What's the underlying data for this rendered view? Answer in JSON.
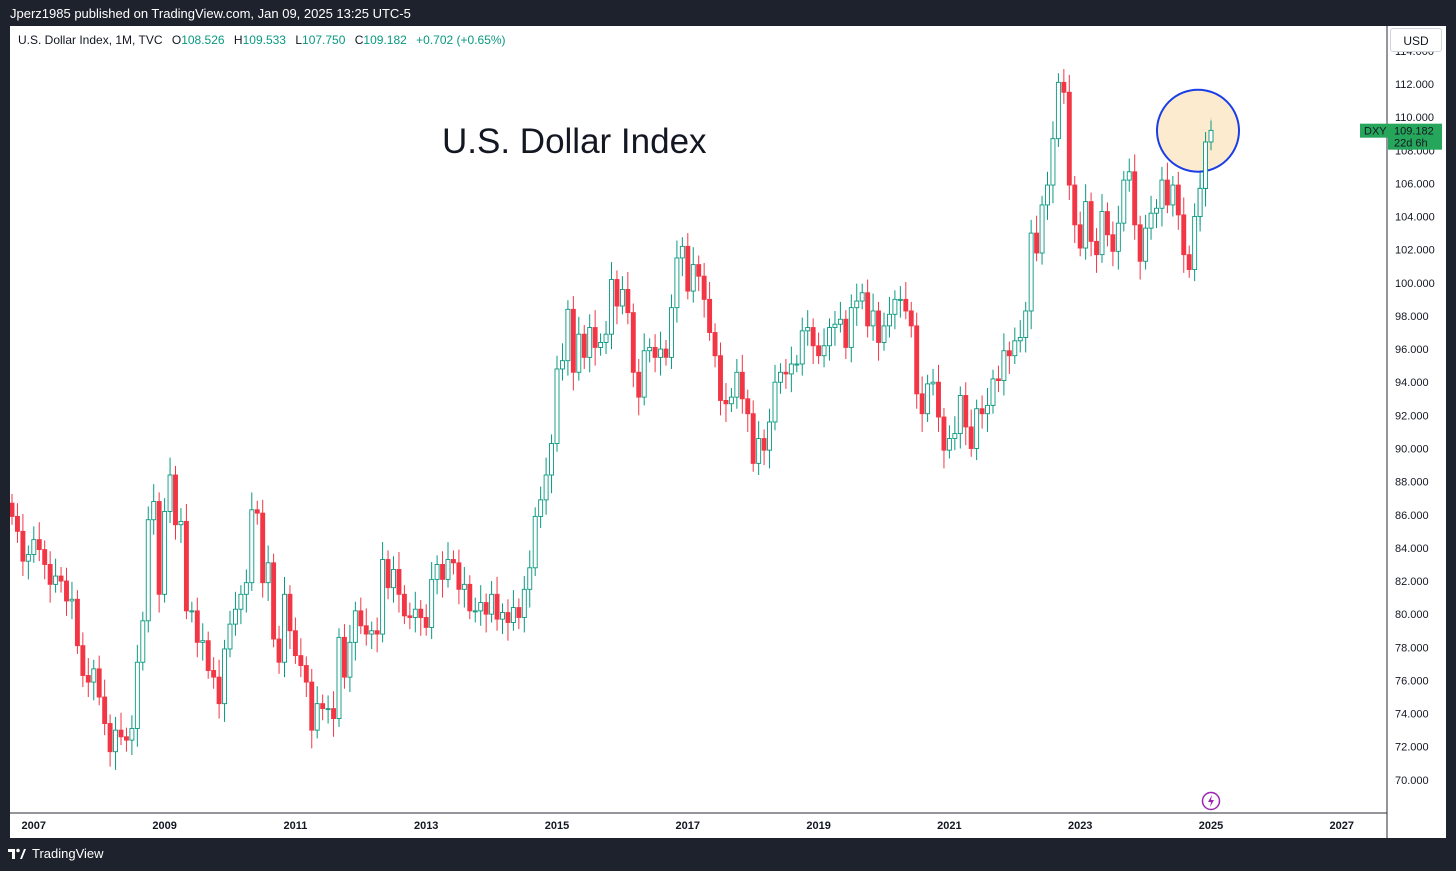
{
  "header": {
    "publish_line": "Jperz1985 published on TradingView.com, Jan 09, 2025 13:25 UTC-5"
  },
  "legend": {
    "symbol_line": "U.S. Dollar Index, 1M, TVC",
    "o_label": "O",
    "o_value": "108.526",
    "h_label": "H",
    "h_value": "109.533",
    "l_label": "L",
    "l_value": "107.750",
    "c_label": "C",
    "c_value": "109.182",
    "change": "+0.702 (+0.65%)"
  },
  "currency_button": "USD",
  "price_tag": {
    "symbol": "DXY",
    "price": "109.182",
    "countdown": "22d 6h"
  },
  "footer": {
    "brand": "TradingView"
  },
  "colors": {
    "up": "#089981",
    "down": "#f23645",
    "highlight_fill": "#fde7c8",
    "highlight_stroke": "#1a3ee6",
    "tag_bg": "#26a65b"
  },
  "chart_data": {
    "type": "candlestick",
    "title": "U.S. Dollar Index",
    "interval": "1M",
    "ylim": [
      68,
      115.5
    ],
    "y_ticks": [
      "70.000",
      "72.000",
      "74.000",
      "76.000",
      "78.000",
      "80.000",
      "82.000",
      "84.000",
      "86.000",
      "88.000",
      "90.000",
      "92.000",
      "94.000",
      "96.000",
      "98.000",
      "100.000",
      "102.000",
      "104.000",
      "106.000",
      "108.000",
      "110.000",
      "112.000",
      "114.000"
    ],
    "x_range": [
      "2006-09",
      "2027-12"
    ],
    "x_ticks": [
      "2007",
      "2009",
      "2011",
      "2013",
      "2015",
      "2017",
      "2019",
      "2021",
      "2023",
      "2025",
      "2027"
    ],
    "grid": false,
    "highlight": {
      "date": "2025-01",
      "center_price": 109,
      "note": "circled latest candles"
    },
    "close_series": [
      {
        "d": "2006-09",
        "c": 85.9
      },
      {
        "d": "2006-10",
        "c": 85.0
      },
      {
        "d": "2006-11",
        "c": 83.2
      },
      {
        "d": "2006-12",
        "c": 83.6
      },
      {
        "d": "2007-01",
        "c": 84.5
      },
      {
        "d": "2007-02",
        "c": 83.9
      },
      {
        "d": "2007-03",
        "c": 83.0
      },
      {
        "d": "2007-04",
        "c": 81.8
      },
      {
        "d": "2007-05",
        "c": 82.3
      },
      {
        "d": "2007-06",
        "c": 82.0
      },
      {
        "d": "2007-07",
        "c": 80.8
      },
      {
        "d": "2007-08",
        "c": 80.9
      },
      {
        "d": "2007-09",
        "c": 78.1
      },
      {
        "d": "2007-10",
        "c": 76.3
      },
      {
        "d": "2007-11",
        "c": 75.9
      },
      {
        "d": "2007-12",
        "c": 76.7
      },
      {
        "d": "2008-01",
        "c": 75.0
      },
      {
        "d": "2008-02",
        "c": 73.4
      },
      {
        "d": "2008-03",
        "c": 71.7
      },
      {
        "d": "2008-04",
        "c": 73.0
      },
      {
        "d": "2008-05",
        "c": 72.6
      },
      {
        "d": "2008-06",
        "c": 72.4
      },
      {
        "d": "2008-07",
        "c": 73.1
      },
      {
        "d": "2008-08",
        "c": 77.1
      },
      {
        "d": "2008-09",
        "c": 79.6
      },
      {
        "d": "2008-10",
        "c": 85.7
      },
      {
        "d": "2008-11",
        "c": 86.8
      },
      {
        "d": "2008-12",
        "c": 81.2
      },
      {
        "d": "2009-01",
        "c": 86.2
      },
      {
        "d": "2009-02",
        "c": 88.4
      },
      {
        "d": "2009-03",
        "c": 85.4
      },
      {
        "d": "2009-04",
        "c": 85.6
      },
      {
        "d": "2009-05",
        "c": 80.2
      },
      {
        "d": "2009-06",
        "c": 80.2
      },
      {
        "d": "2009-07",
        "c": 78.3
      },
      {
        "d": "2009-08",
        "c": 78.4
      },
      {
        "d": "2009-09",
        "c": 76.6
      },
      {
        "d": "2009-10",
        "c": 76.2
      },
      {
        "d": "2009-11",
        "c": 74.6
      },
      {
        "d": "2009-12",
        "c": 77.9
      },
      {
        "d": "2010-01",
        "c": 79.4
      },
      {
        "d": "2010-02",
        "c": 80.3
      },
      {
        "d": "2010-03",
        "c": 81.2
      },
      {
        "d": "2010-04",
        "c": 81.9
      },
      {
        "d": "2010-05",
        "c": 86.3
      },
      {
        "d": "2010-06",
        "c": 86.1
      },
      {
        "d": "2010-07",
        "c": 81.9
      },
      {
        "d": "2010-08",
        "c": 83.1
      },
      {
        "d": "2010-09",
        "c": 78.5
      },
      {
        "d": "2010-10",
        "c": 77.1
      },
      {
        "d": "2010-11",
        "c": 81.2
      },
      {
        "d": "2010-12",
        "c": 79.0
      },
      {
        "d": "2011-01",
        "c": 77.5
      },
      {
        "d": "2011-02",
        "c": 76.9
      },
      {
        "d": "2011-03",
        "c": 75.9
      },
      {
        "d": "2011-04",
        "c": 73.0
      },
      {
        "d": "2011-05",
        "c": 74.6
      },
      {
        "d": "2011-06",
        "c": 74.3
      },
      {
        "d": "2011-07",
        "c": 74.3
      },
      {
        "d": "2011-08",
        "c": 73.7
      },
      {
        "d": "2011-09",
        "c": 78.6
      },
      {
        "d": "2011-10",
        "c": 76.2
      },
      {
        "d": "2011-11",
        "c": 78.3
      },
      {
        "d": "2011-12",
        "c": 80.2
      },
      {
        "d": "2012-01",
        "c": 79.3
      },
      {
        "d": "2012-02",
        "c": 78.8
      },
      {
        "d": "2012-03",
        "c": 79.0
      },
      {
        "d": "2012-04",
        "c": 78.8
      },
      {
        "d": "2012-05",
        "c": 83.3
      },
      {
        "d": "2012-06",
        "c": 81.6
      },
      {
        "d": "2012-07",
        "c": 82.7
      },
      {
        "d": "2012-08",
        "c": 81.2
      },
      {
        "d": "2012-09",
        "c": 79.9
      },
      {
        "d": "2012-10",
        "c": 79.8
      },
      {
        "d": "2012-11",
        "c": 80.3
      },
      {
        "d": "2012-12",
        "c": 79.8
      },
      {
        "d": "2013-01",
        "c": 79.2
      },
      {
        "d": "2013-02",
        "c": 82.1
      },
      {
        "d": "2013-03",
        "c": 83.0
      },
      {
        "d": "2013-04",
        "c": 82.1
      },
      {
        "d": "2013-05",
        "c": 83.3
      },
      {
        "d": "2013-06",
        "c": 83.1
      },
      {
        "d": "2013-07",
        "c": 81.5
      },
      {
        "d": "2013-08",
        "c": 81.8
      },
      {
        "d": "2013-09",
        "c": 80.2
      },
      {
        "d": "2013-10",
        "c": 80.2
      },
      {
        "d": "2013-11",
        "c": 80.7
      },
      {
        "d": "2013-12",
        "c": 80.0
      },
      {
        "d": "2014-01",
        "c": 81.2
      },
      {
        "d": "2014-02",
        "c": 79.7
      },
      {
        "d": "2014-03",
        "c": 80.1
      },
      {
        "d": "2014-04",
        "c": 79.5
      },
      {
        "d": "2014-05",
        "c": 80.4
      },
      {
        "d": "2014-06",
        "c": 79.8
      },
      {
        "d": "2014-07",
        "c": 81.5
      },
      {
        "d": "2014-08",
        "c": 82.8
      },
      {
        "d": "2014-09",
        "c": 85.9
      },
      {
        "d": "2014-10",
        "c": 86.9
      },
      {
        "d": "2014-11",
        "c": 88.4
      },
      {
        "d": "2014-12",
        "c": 90.3
      },
      {
        "d": "2015-01",
        "c": 94.8
      },
      {
        "d": "2015-02",
        "c": 95.3
      },
      {
        "d": "2015-03",
        "c": 98.4
      },
      {
        "d": "2015-04",
        "c": 94.6
      },
      {
        "d": "2015-05",
        "c": 96.9
      },
      {
        "d": "2015-06",
        "c": 95.5
      },
      {
        "d": "2015-07",
        "c": 97.3
      },
      {
        "d": "2015-08",
        "c": 96.1
      },
      {
        "d": "2015-09",
        "c": 96.4
      },
      {
        "d": "2015-10",
        "c": 96.9
      },
      {
        "d": "2015-11",
        "c": 100.2
      },
      {
        "d": "2015-12",
        "c": 98.6
      },
      {
        "d": "2016-01",
        "c": 99.6
      },
      {
        "d": "2016-02",
        "c": 98.2
      },
      {
        "d": "2016-03",
        "c": 94.6
      },
      {
        "d": "2016-04",
        "c": 93.1
      },
      {
        "d": "2016-05",
        "c": 95.9
      },
      {
        "d": "2016-06",
        "c": 96.1
      },
      {
        "d": "2016-07",
        "c": 95.5
      },
      {
        "d": "2016-08",
        "c": 96.0
      },
      {
        "d": "2016-09",
        "c": 95.5
      },
      {
        "d": "2016-10",
        "c": 98.5
      },
      {
        "d": "2016-11",
        "c": 101.5
      },
      {
        "d": "2016-12",
        "c": 102.2
      },
      {
        "d": "2017-01",
        "c": 99.5
      },
      {
        "d": "2017-02",
        "c": 101.1
      },
      {
        "d": "2017-03",
        "c": 100.4
      },
      {
        "d": "2017-04",
        "c": 99.0
      },
      {
        "d": "2017-05",
        "c": 97.0
      },
      {
        "d": "2017-06",
        "c": 95.6
      },
      {
        "d": "2017-07",
        "c": 92.9
      },
      {
        "d": "2017-08",
        "c": 92.7
      },
      {
        "d": "2017-09",
        "c": 93.1
      },
      {
        "d": "2017-10",
        "c": 94.6
      },
      {
        "d": "2017-11",
        "c": 93.0
      },
      {
        "d": "2017-12",
        "c": 92.1
      },
      {
        "d": "2018-01",
        "c": 89.1
      },
      {
        "d": "2018-02",
        "c": 90.6
      },
      {
        "d": "2018-03",
        "c": 89.9
      },
      {
        "d": "2018-04",
        "c": 91.6
      },
      {
        "d": "2018-05",
        "c": 94.0
      },
      {
        "d": "2018-06",
        "c": 94.6
      },
      {
        "d": "2018-07",
        "c": 94.5
      },
      {
        "d": "2018-08",
        "c": 95.1
      },
      {
        "d": "2018-09",
        "c": 95.1
      },
      {
        "d": "2018-10",
        "c": 97.1
      },
      {
        "d": "2018-11",
        "c": 97.3
      },
      {
        "d": "2018-12",
        "c": 96.2
      },
      {
        "d": "2019-01",
        "c": 95.6
      },
      {
        "d": "2019-02",
        "c": 96.2
      },
      {
        "d": "2019-03",
        "c": 97.3
      },
      {
        "d": "2019-04",
        "c": 97.5
      },
      {
        "d": "2019-05",
        "c": 97.8
      },
      {
        "d": "2019-06",
        "c": 96.1
      },
      {
        "d": "2019-07",
        "c": 98.5
      },
      {
        "d": "2019-08",
        "c": 98.9
      },
      {
        "d": "2019-09",
        "c": 99.4
      },
      {
        "d": "2019-10",
        "c": 97.4
      },
      {
        "d": "2019-11",
        "c": 98.3
      },
      {
        "d": "2019-12",
        "c": 96.4
      },
      {
        "d": "2020-01",
        "c": 97.4
      },
      {
        "d": "2020-02",
        "c": 98.1
      },
      {
        "d": "2020-03",
        "c": 99.0
      },
      {
        "d": "2020-04",
        "c": 99.0
      },
      {
        "d": "2020-05",
        "c": 98.3
      },
      {
        "d": "2020-06",
        "c": 97.4
      },
      {
        "d": "2020-07",
        "c": 93.3
      },
      {
        "d": "2020-08",
        "c": 92.1
      },
      {
        "d": "2020-09",
        "c": 93.9
      },
      {
        "d": "2020-10",
        "c": 94.0
      },
      {
        "d": "2020-11",
        "c": 91.9
      },
      {
        "d": "2020-12",
        "c": 89.9
      },
      {
        "d": "2021-01",
        "c": 90.6
      },
      {
        "d": "2021-02",
        "c": 90.9
      },
      {
        "d": "2021-03",
        "c": 93.2
      },
      {
        "d": "2021-04",
        "c": 91.3
      },
      {
        "d": "2021-05",
        "c": 90.0
      },
      {
        "d": "2021-06",
        "c": 92.4
      },
      {
        "d": "2021-07",
        "c": 92.1
      },
      {
        "d": "2021-08",
        "c": 92.6
      },
      {
        "d": "2021-09",
        "c": 94.2
      },
      {
        "d": "2021-10",
        "c": 94.1
      },
      {
        "d": "2021-11",
        "c": 95.9
      },
      {
        "d": "2021-12",
        "c": 95.6
      },
      {
        "d": "2022-01",
        "c": 96.5
      },
      {
        "d": "2022-02",
        "c": 96.7
      },
      {
        "d": "2022-03",
        "c": 98.3
      },
      {
        "d": "2022-04",
        "c": 103.0
      },
      {
        "d": "2022-05",
        "c": 101.8
      },
      {
        "d": "2022-06",
        "c": 104.7
      },
      {
        "d": "2022-07",
        "c": 105.9
      },
      {
        "d": "2022-08",
        "c": 108.7
      },
      {
        "d": "2022-09",
        "c": 112.1
      },
      {
        "d": "2022-10",
        "c": 111.5
      },
      {
        "d": "2022-11",
        "c": 105.9
      },
      {
        "d": "2022-12",
        "c": 103.5
      },
      {
        "d": "2023-01",
        "c": 102.1
      },
      {
        "d": "2023-02",
        "c": 104.9
      },
      {
        "d": "2023-03",
        "c": 102.5
      },
      {
        "d": "2023-04",
        "c": 101.7
      },
      {
        "d": "2023-05",
        "c": 104.3
      },
      {
        "d": "2023-06",
        "c": 102.9
      },
      {
        "d": "2023-07",
        "c": 101.9
      },
      {
        "d": "2023-08",
        "c": 103.6
      },
      {
        "d": "2023-09",
        "c": 106.2
      },
      {
        "d": "2023-10",
        "c": 106.7
      },
      {
        "d": "2023-11",
        "c": 103.5
      },
      {
        "d": "2023-12",
        "c": 101.3
      },
      {
        "d": "2024-01",
        "c": 103.3
      },
      {
        "d": "2024-02",
        "c": 104.2
      },
      {
        "d": "2024-03",
        "c": 104.5
      },
      {
        "d": "2024-04",
        "c": 106.2
      },
      {
        "d": "2024-05",
        "c": 104.7
      },
      {
        "d": "2024-06",
        "c": 105.9
      },
      {
        "d": "2024-07",
        "c": 104.1
      },
      {
        "d": "2024-08",
        "c": 101.7
      },
      {
        "d": "2024-09",
        "c": 100.8
      },
      {
        "d": "2024-10",
        "c": 104.0
      },
      {
        "d": "2024-11",
        "c": 105.7
      },
      {
        "d": "2024-12",
        "c": 108.5
      },
      {
        "d": "2025-01",
        "c": 109.2
      }
    ]
  }
}
